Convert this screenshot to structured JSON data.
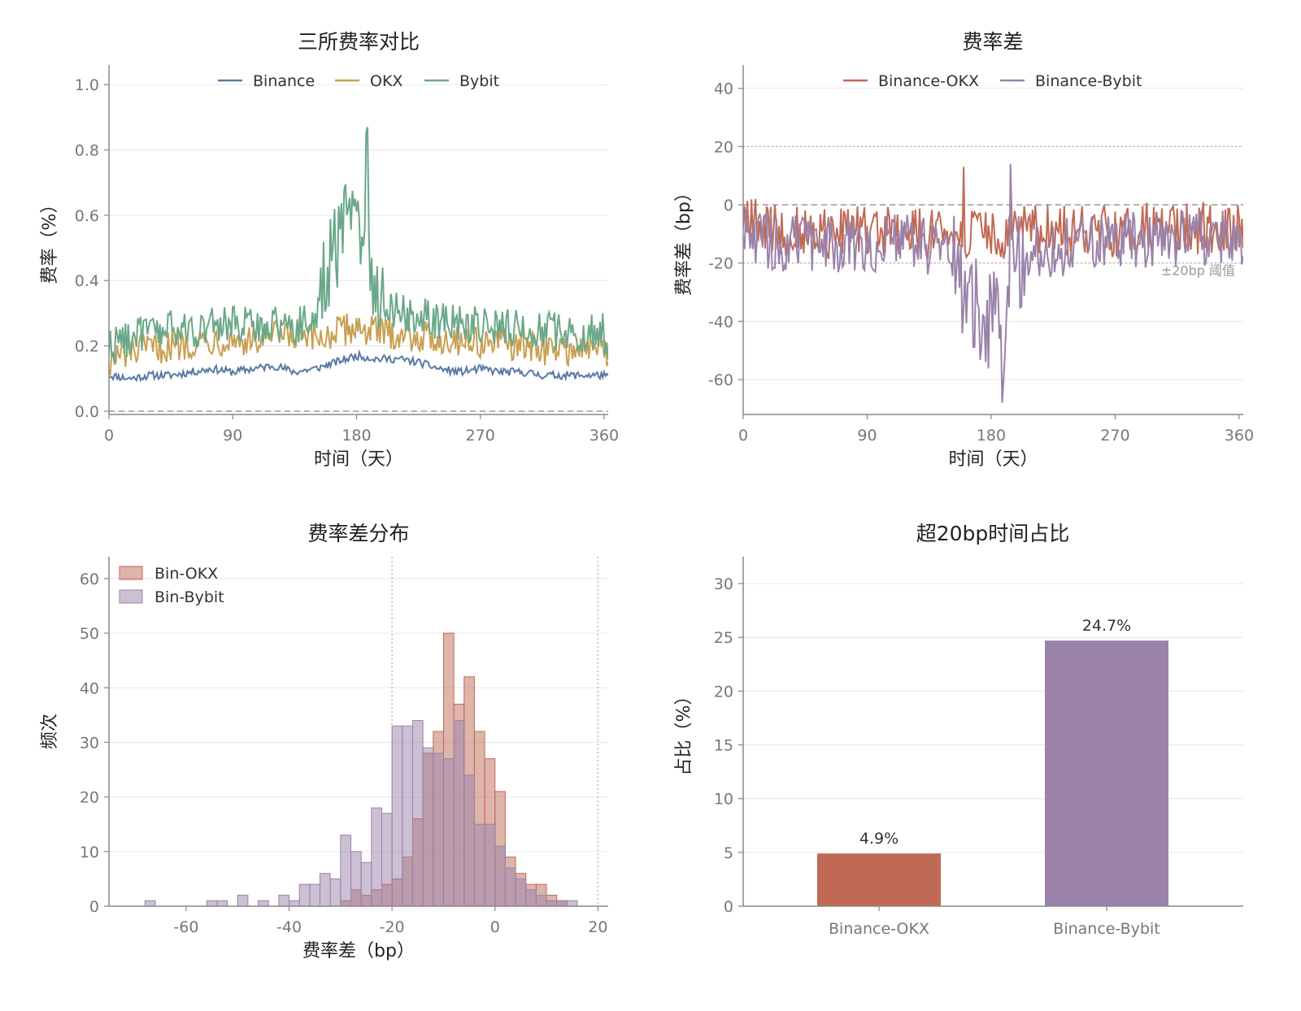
{
  "colors": {
    "binance": "#5a7aa6",
    "okx": "#c9a052",
    "bybit": "#6aa888",
    "diff_okx": "#c06a55",
    "diff_bybit": "#9a82aa",
    "grid": "#e6e6e6",
    "axis": "#888888"
  },
  "chart_data": [
    {
      "type": "line",
      "title": "三所费率对比",
      "xlabel": "时间（天）",
      "ylabel": "费率（%）",
      "xlim": [
        0,
        363
      ],
      "ylim": [
        -0.01,
        1.06
      ],
      "xticks": [
        "0",
        "90",
        "180",
        "270",
        "360"
      ],
      "yticks": [
        "0.0",
        "0.2",
        "0.4",
        "0.6",
        "0.8",
        "1.0"
      ],
      "legend_position": "top-center",
      "reference_line": 0,
      "series": [
        {
          "name": "Binance",
          "key": "binance",
          "x": [
            0,
            15,
            30,
            45,
            60,
            75,
            90,
            105,
            120,
            135,
            150,
            165,
            180,
            195,
            210,
            225,
            240,
            255,
            270,
            285,
            300,
            315,
            330,
            345,
            360,
            363
          ],
          "values": [
            0.11,
            0.1,
            0.11,
            0.11,
            0.12,
            0.13,
            0.12,
            0.13,
            0.14,
            0.12,
            0.13,
            0.15,
            0.17,
            0.16,
            0.16,
            0.15,
            0.13,
            0.12,
            0.13,
            0.12,
            0.12,
            0.11,
            0.11,
            0.11,
            0.11,
            0.1
          ]
        },
        {
          "name": "OKX",
          "key": "okx",
          "x": [
            0,
            15,
            30,
            45,
            60,
            75,
            90,
            105,
            120,
            135,
            150,
            165,
            180,
            195,
            210,
            225,
            240,
            255,
            270,
            285,
            300,
            315,
            330,
            345,
            360,
            363
          ],
          "values": [
            0.15,
            0.18,
            0.19,
            0.2,
            0.21,
            0.22,
            0.22,
            0.21,
            0.23,
            0.22,
            0.22,
            0.24,
            0.26,
            0.24,
            0.24,
            0.23,
            0.22,
            0.22,
            0.21,
            0.21,
            0.2,
            0.19,
            0.19,
            0.19,
            0.2,
            0.15
          ]
        },
        {
          "name": "Bybit",
          "key": "bybit",
          "x": [
            0,
            15,
            30,
            45,
            60,
            75,
            90,
            105,
            120,
            135,
            150,
            155,
            160,
            170,
            175,
            180,
            185,
            188,
            190,
            195,
            200,
            210,
            225,
            240,
            255,
            270,
            285,
            300,
            315,
            330,
            345,
            360,
            363
          ],
          "values": [
            0.2,
            0.23,
            0.24,
            0.25,
            0.25,
            0.26,
            0.27,
            0.26,
            0.27,
            0.26,
            0.28,
            0.4,
            0.45,
            0.55,
            0.65,
            0.62,
            0.5,
            0.87,
            0.45,
            0.35,
            0.33,
            0.31,
            0.29,
            0.28,
            0.27,
            0.26,
            0.26,
            0.25,
            0.25,
            0.24,
            0.24,
            0.24,
            0.2
          ]
        }
      ]
    },
    {
      "type": "line",
      "title": "费率差",
      "xlabel": "时间（天）",
      "ylabel": "费率差（bp）",
      "xlim": [
        0,
        363
      ],
      "ylim": [
        -72,
        48
      ],
      "xticks": [
        "0",
        "90",
        "180",
        "270",
        "360"
      ],
      "yticks": [
        "-60",
        "-40",
        "-20",
        "0",
        "20",
        "40"
      ],
      "legend_position": "top-center",
      "reference_line": 0,
      "threshold_lines": [
        20,
        -20
      ],
      "threshold_note": "±20bp 阈值",
      "series": [
        {
          "name": "Binance-OKX",
          "key": "diff_okx",
          "x": [
            0,
            15,
            30,
            45,
            60,
            75,
            90,
            105,
            120,
            135,
            150,
            165,
            180,
            195,
            210,
            225,
            240,
            255,
            270,
            285,
            300,
            315,
            330,
            345,
            360,
            363
          ],
          "values": [
            -5,
            -8,
            -9,
            -9,
            -10,
            -9,
            -10,
            -9,
            -9,
            -10,
            -9,
            -10,
            -11,
            -10,
            -9,
            -8,
            -9,
            -9,
            -9,
            -8,
            -8,
            -9,
            -8,
            -8,
            -8,
            -6
          ]
        },
        {
          "name": "Binance-Bybit",
          "key": "diff_bybit",
          "x": [
            0,
            15,
            30,
            45,
            60,
            75,
            90,
            105,
            120,
            135,
            150,
            160,
            170,
            175,
            180,
            185,
            188,
            192,
            195,
            200,
            210,
            225,
            240,
            255,
            270,
            285,
            300,
            315,
            330,
            345,
            360,
            363
          ],
          "values": [
            -9,
            -13,
            -13,
            -14,
            -14,
            -13,
            -14,
            -13,
            -13,
            -14,
            -15,
            -28,
            -35,
            -43,
            -38,
            -37,
            -68,
            -30,
            -22,
            -20,
            -17,
            -15,
            -14,
            -13,
            -13,
            -12,
            -12,
            -12,
            -11,
            -11,
            -12,
            -10
          ]
        }
      ]
    },
    {
      "type": "histogram",
      "title": "费率差分布",
      "xlabel": "费率差（bp）",
      "ylabel": "频次",
      "xlim": [
        -75,
        22
      ],
      "ylim": [
        0,
        64
      ],
      "xticks": [
        "-60",
        "-40",
        "-20",
        "0",
        "20"
      ],
      "yticks": [
        "0",
        "10",
        "20",
        "30",
        "40",
        "50",
        "60"
      ],
      "legend_position": "top-left",
      "threshold_lines": [
        -20,
        20
      ],
      "bin_width": 2,
      "series": [
        {
          "name": "Bin-OKX",
          "key": "diff_okx",
          "bin_start": [
            -70,
            -68,
            -66,
            -64,
            -62,
            -60,
            -58,
            -56,
            -54,
            -52,
            -50,
            -48,
            -46,
            -44,
            -42,
            -40,
            -38,
            -36,
            -34,
            -32,
            -30,
            -28,
            -26,
            -24,
            -22,
            -20,
            -18,
            -16,
            -14,
            -12,
            -10,
            -8,
            -6,
            -4,
            -2,
            0,
            2,
            4,
            6,
            8,
            10,
            12,
            14,
            16
          ],
          "values": [
            0,
            0,
            0,
            0,
            0,
            0,
            0,
            0,
            0,
            0,
            0,
            0,
            0,
            0,
            0,
            0,
            0,
            0,
            0,
            0,
            1,
            3,
            2,
            3,
            4,
            5,
            9,
            16,
            28,
            32,
            50,
            37,
            42,
            32,
            27,
            21,
            9,
            6,
            4,
            4,
            2,
            1,
            0,
            0
          ]
        },
        {
          "name": "Bin-Bybit",
          "key": "diff_bybit",
          "bin_start": [
            -70,
            -68,
            -66,
            -64,
            -62,
            -60,
            -58,
            -56,
            -54,
            -52,
            -50,
            -48,
            -46,
            -44,
            -42,
            -40,
            -38,
            -36,
            -34,
            -32,
            -30,
            -28,
            -26,
            -24,
            -22,
            -20,
            -18,
            -16,
            -14,
            -12,
            -10,
            -8,
            -6,
            -4,
            -2,
            0,
            2,
            4,
            6,
            8,
            10,
            12,
            14,
            16
          ],
          "values": [
            0,
            1,
            0,
            0,
            0,
            0,
            0,
            1,
            1,
            0,
            2,
            0,
            1,
            0,
            2,
            1,
            4,
            4,
            6,
            5,
            13,
            10,
            8,
            18,
            17,
            33,
            33,
            34,
            29,
            28,
            27,
            34,
            24,
            15,
            15,
            11,
            7,
            5,
            3,
            2,
            1,
            1,
            1,
            0
          ]
        }
      ]
    },
    {
      "type": "bar",
      "title": "超20bp时间占比",
      "xlabel": "",
      "ylabel": "占比（%）",
      "ylim": [
        0,
        32.5
      ],
      "yticks": [
        "0",
        "5",
        "10",
        "15",
        "20",
        "25",
        "30"
      ],
      "categories": [
        "Binance-OKX",
        "Binance-Bybit"
      ],
      "values": [
        4.9,
        24.7
      ],
      "labels": [
        "4.9%",
        "24.7%"
      ],
      "keys": [
        "diff_okx",
        "diff_bybit"
      ]
    }
  ]
}
